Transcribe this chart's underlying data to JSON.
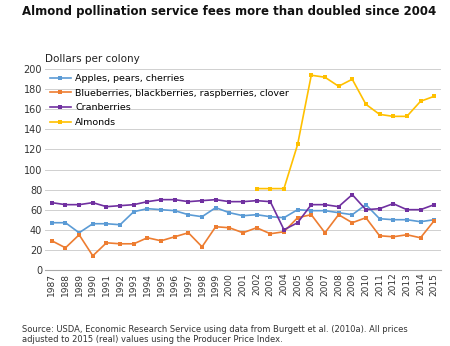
{
  "title": "Almond pollination service fees more than doubled since 2004",
  "ylabel": "Dollars per colony",
  "source": "Source: USDA, Economic Research Service using data from Burgett et al. (2010a). All prices\nadjusted to 2015 (real) values using the Producer Price Index.",
  "years": [
    1987,
    1988,
    1989,
    1990,
    1991,
    1992,
    1993,
    1994,
    1995,
    1996,
    1997,
    1998,
    1999,
    2000,
    2001,
    2002,
    2003,
    2004,
    2005,
    2006,
    2007,
    2008,
    2009,
    2010,
    2011,
    2012,
    2013,
    2014,
    2015
  ],
  "apples": [
    47,
    47,
    37,
    46,
    46,
    45,
    58,
    61,
    60,
    59,
    55,
    53,
    62,
    57,
    54,
    55,
    53,
    52,
    60,
    59,
    59,
    57,
    55,
    65,
    51,
    50,
    50,
    48,
    50
  ],
  "blueberries": [
    29,
    22,
    35,
    14,
    27,
    26,
    26,
    32,
    29,
    33,
    37,
    23,
    43,
    42,
    37,
    42,
    36,
    38,
    52,
    55,
    37,
    55,
    47,
    52,
    34,
    33,
    35,
    32,
    49
  ],
  "cranberries": [
    67,
    65,
    65,
    67,
    63,
    64,
    65,
    68,
    70,
    70,
    68,
    69,
    70,
    68,
    68,
    69,
    68,
    40,
    47,
    65,
    65,
    63,
    75,
    60,
    61,
    66,
    60,
    60,
    65
  ],
  "almonds_years": [
    2002,
    2003,
    2004,
    2005,
    2006,
    2007,
    2008,
    2009,
    2010,
    2011,
    2012,
    2013,
    2014,
    2015
  ],
  "almonds": [
    81,
    81,
    81,
    125,
    194,
    192,
    183,
    190,
    165,
    155,
    153,
    153,
    168,
    173
  ],
  "color_apples": "#5b9bd5",
  "color_blueberries": "#ed7d31",
  "color_cranberries": "#7030a0",
  "color_almonds": "#ffc000",
  "ylim": [
    0,
    200
  ],
  "yticks": [
    0,
    20,
    40,
    60,
    80,
    100,
    120,
    140,
    160,
    180,
    200
  ],
  "background_color": "#ffffff",
  "grid_color": "#d0d0d0"
}
